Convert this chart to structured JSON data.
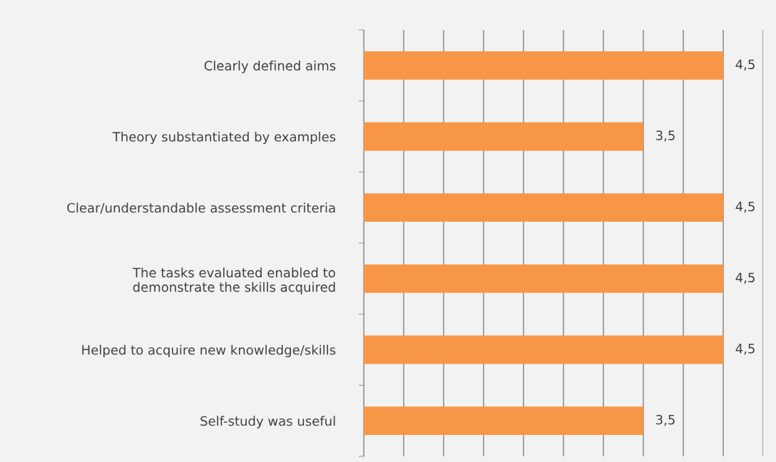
{
  "chart_data": {
    "type": "bar",
    "orientation": "horizontal",
    "categories": [
      "Clearly defined aims",
      "Theory substantiated by examples",
      "Clear/understandable assessment criteria",
      "The tasks evaluated enabled to\ndemonstrate the skills acquired",
      "Helped to acquire new knowledge/skills",
      "Self-study was useful"
    ],
    "values": [
      4.5,
      3.5,
      4.5,
      4.5,
      4.5,
      3.5
    ],
    "value_labels": [
      "4,5",
      "3,5",
      "4,5",
      "4,5",
      "4,5",
      "3,5"
    ],
    "color": "#f79646",
    "xlim": [
      0,
      5
    ],
    "xticks": [
      {
        "value": 0,
        "label": null
      },
      {
        "value": 0.5,
        "label": null
      },
      {
        "value": 1,
        "label": null
      },
      {
        "value": 1.5,
        "label": null
      },
      {
        "value": 2,
        "label": null
      },
      {
        "value": 2.5,
        "label": null
      },
      {
        "value": 3,
        "label": null
      },
      {
        "value": 3.5,
        "label": null
      },
      {
        "value": 4,
        "label": null
      },
      {
        "value": 4.5,
        "label": null
      },
      {
        "value": 5,
        "label": null
      }
    ],
    "grid": "x",
    "tick_labels": "y"
  }
}
